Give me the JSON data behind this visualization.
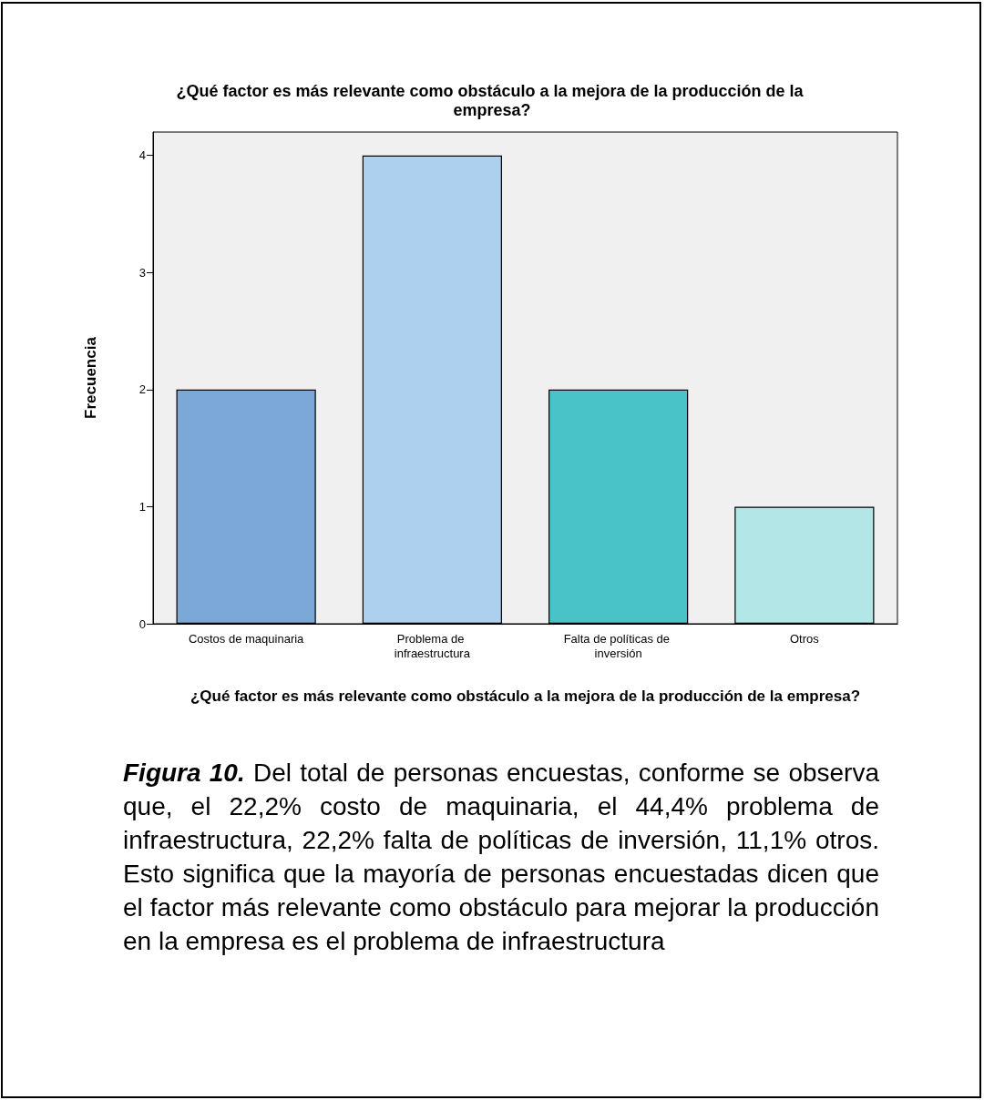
{
  "chart_data": {
    "type": "bar",
    "title": "¿Qué factor es más relevante como obstáculo a la mejora de la producción de la empresa?",
    "xlabel": "¿Qué factor es más relevante como obstáculo a la mejora de la producción de la empresa?",
    "ylabel": "Frecuencia",
    "categories": [
      "Costos de maquinaria",
      "Problema de infraestructura",
      "Falta de políticas de inversión",
      "Otros"
    ],
    "values": [
      2,
      4,
      2,
      1
    ],
    "colors": [
      "#7ba8d6",
      "#acd0ee",
      "#49c2c8",
      "#b3e6e6"
    ],
    "ylim": [
      0,
      4.2
    ],
    "yticks": [
      0,
      1,
      2,
      3,
      4
    ],
    "grid": false,
    "annotations": [
      "Figura 10.",
      "Del total de personas encuestas, conforme se observa que, el 22,2% costo de maquinaria, el 44,4% problema de infraestructura, 22,2% falta de políticas de inversión, 11,1% otros. Esto significa que la mayoría de personas encuestadas dicen que el factor más relevante como obstáculo para mejorar la producción en la empresa es el problema de infraestructura"
    ]
  }
}
